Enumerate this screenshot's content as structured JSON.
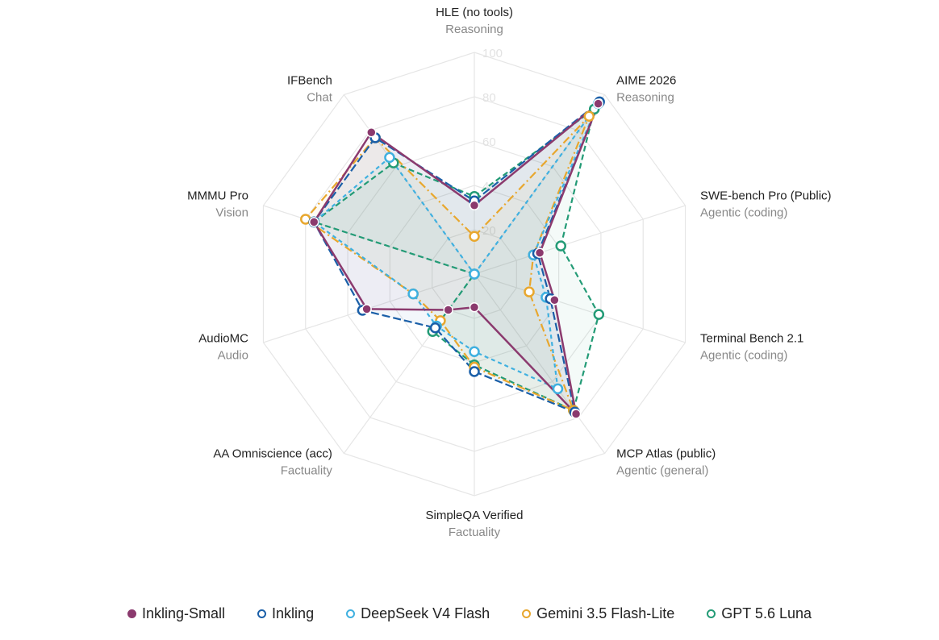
{
  "chart_data": {
    "type": "radar",
    "title": "",
    "range": [
      0,
      100
    ],
    "ticks": [
      "20",
      "40",
      "60",
      "80",
      "100"
    ],
    "axes": [
      {
        "name": "HLE (no tools)",
        "category": "Reasoning"
      },
      {
        "name": "AIME 2026",
        "category": "Reasoning"
      },
      {
        "name": "SWE-bench Pro (Public)",
        "category": "Agentic (coding)"
      },
      {
        "name": "Terminal Bench 2.1",
        "category": "Agentic (coding)"
      },
      {
        "name": "MCP Atlas (public)",
        "category": "Agentic (general)"
      },
      {
        "name": "SimpleQA Verified",
        "category": "Factuality"
      },
      {
        "name": "AA Omniscience (acc)",
        "category": "Factuality"
      },
      {
        "name": "AudioMC",
        "category": "Audio"
      },
      {
        "name": "MMMU Pro",
        "category": "Vision"
      },
      {
        "name": "IFBench",
        "category": "Chat"
      }
    ],
    "series": [
      {
        "name": "Inkling-Small",
        "color": "#8b3a6e",
        "filled_markers": true,
        "dash": "",
        "values": [
          31,
          95,
          31,
          38,
          78,
          15,
          20,
          51,
          76,
          79
        ]
      },
      {
        "name": "Inkling",
        "color": "#1a5fa8",
        "filled_markers": false,
        "dash": "10,4",
        "values": [
          33,
          96,
          30,
          36,
          77,
          44,
          30,
          53,
          76,
          76
        ]
      },
      {
        "name": "DeepSeek V4 Flash",
        "color": "#3fb0e0",
        "filled_markers": false,
        "dash": "5,4",
        "values": [
          0,
          95,
          28,
          34,
          64,
          35,
          29,
          29,
          76,
          65
        ]
      },
      {
        "name": "Gemini 3.5 Flash-Lite",
        "color": "#e8a72e",
        "filled_markers": false,
        "dash": "10,4,2,4",
        "values": [
          17,
          88,
          28,
          26,
          76,
          42,
          26,
          29,
          80,
          76
        ]
      },
      {
        "name": "GPT 5.6 Luna",
        "color": "#239b76",
        "filled_markers": false,
        "dash": "7,4",
        "values": [
          35,
          92,
          41,
          59,
          76,
          41,
          32,
          0,
          76,
          62
        ]
      }
    ]
  }
}
